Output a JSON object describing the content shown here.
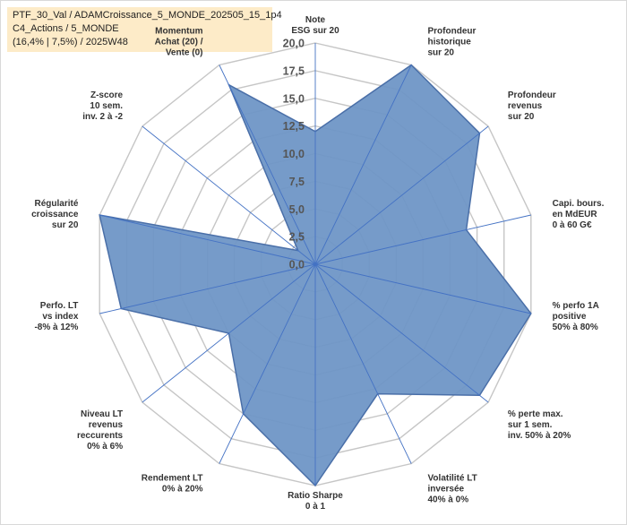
{
  "title_lines": [
    "PTF_30_Val / ADAMCroissance_5_MONDE_202505_15_1p4",
    "C4_Actions / 5_MONDE",
    "(16,4% | 7,5%) / 2025W48"
  ],
  "colors": {
    "fill": "#6f96c6",
    "stroke": "#4a6fa8",
    "spoke": "#4472c4",
    "grid": "#c6c6c6",
    "title_bg": "#fdebc8"
  },
  "chart_data": {
    "type": "radar",
    "ylim": [
      0,
      20
    ],
    "ticks": [
      "0,0",
      "2,5",
      "5,0",
      "7,5",
      "10,0",
      "12,5",
      "15,0",
      "17,5",
      "20,0"
    ],
    "grid": true,
    "axes": [
      {
        "label": [
          "Note",
          "ESG sur 20"
        ],
        "value": 12.0
      },
      {
        "label": [
          "Profondeur",
          "historique",
          "sur 20"
        ],
        "value": 20.0
      },
      {
        "label": [
          "Profondeur",
          "revenus",
          "sur 20"
        ],
        "value": 19.0
      },
      {
        "label": [
          "Capi. bours.",
          "en MdEUR",
          "0 à 60 G€"
        ],
        "value": 14.0
      },
      {
        "label": [
          "% perfo 1A",
          "positive",
          "50% à 80%"
        ],
        "value": 20.0
      },
      {
        "label": [
          "% perte max.",
          "sur 1 sem.",
          "inv. 50% à 20%"
        ],
        "value": 19.0
      },
      {
        "label": [
          "Volatilité LT",
          "inversée",
          "40% à 0%"
        ],
        "value": 13.0
      },
      {
        "label": [
          "Ratio Sharpe",
          "0 à 1"
        ],
        "value": 20.0
      },
      {
        "label": [
          "Rendement LT",
          "0% à 20%"
        ],
        "value": 15.0
      },
      {
        "label": [
          "Niveau LT",
          "revenus",
          "reccurents",
          "0% à 6%"
        ],
        "value": 10.0
      },
      {
        "label": [
          "Perfo. LT",
          "vs index",
          "-8% à 12%"
        ],
        "value": 18.0
      },
      {
        "label": [
          "Régularité",
          "croissance",
          "sur 20"
        ],
        "value": 20.0
      },
      {
        "label": [
          "Z-score",
          "10 sem.",
          "inv. 2 à -2"
        ],
        "value": 2.0
      },
      {
        "label": [
          "Momentum",
          "Achat (20) /",
          "Vente (0)"
        ],
        "value": 18.0
      }
    ]
  }
}
